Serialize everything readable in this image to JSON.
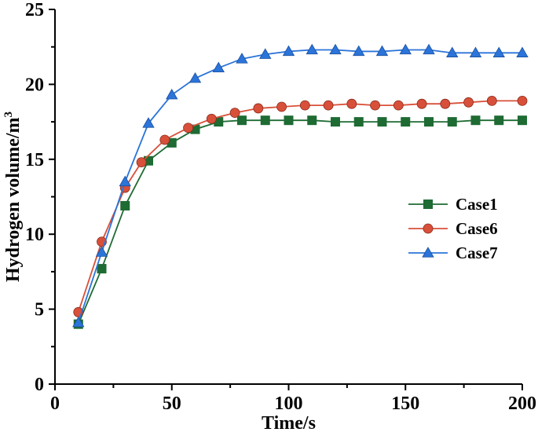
{
  "chart_data": {
    "type": "line",
    "xlabel": "Time/s",
    "ylabel": "Hydrogen volume/m",
    "ylabel_superscript": "3",
    "xlim": [
      0,
      200
    ],
    "ylim": [
      0,
      25
    ],
    "xticks": [
      0,
      50,
      100,
      150,
      200
    ],
    "yticks": [
      0,
      5,
      10,
      15,
      20,
      25
    ],
    "grid": false,
    "legend_position": "right",
    "series": [
      {
        "name": "Case1",
        "color": "#1e6b33",
        "marker": "square",
        "x": [
          10,
          20,
          30,
          40,
          50,
          60,
          70,
          80,
          90,
          100,
          110,
          120,
          130,
          140,
          150,
          160,
          170,
          180,
          190,
          200
        ],
        "y": [
          4.0,
          7.7,
          11.9,
          14.9,
          16.1,
          17.0,
          17.5,
          17.6,
          17.6,
          17.6,
          17.6,
          17.5,
          17.5,
          17.5,
          17.5,
          17.5,
          17.5,
          17.6,
          17.6,
          17.6
        ]
      },
      {
        "name": "Case6",
        "color": "#d8503a",
        "marker": "circle",
        "x": [
          10,
          20,
          30,
          37,
          47,
          57,
          67,
          77,
          87,
          97,
          107,
          117,
          127,
          137,
          147,
          157,
          167,
          177,
          187,
          200
        ],
        "y": [
          4.8,
          9.5,
          13.1,
          14.8,
          16.3,
          17.1,
          17.7,
          18.1,
          18.4,
          18.5,
          18.6,
          18.6,
          18.7,
          18.6,
          18.6,
          18.7,
          18.7,
          18.8,
          18.9,
          18.9
        ]
      },
      {
        "name": "Case7",
        "color": "#2b74d9",
        "marker": "triangle",
        "x": [
          10,
          20,
          30,
          40,
          50,
          60,
          70,
          80,
          90,
          100,
          110,
          120,
          130,
          140,
          150,
          160,
          170,
          180,
          190,
          200
        ],
        "y": [
          4.1,
          8.8,
          13.5,
          17.4,
          19.3,
          20.4,
          21.1,
          21.7,
          22.0,
          22.2,
          22.3,
          22.3,
          22.2,
          22.2,
          22.3,
          22.3,
          22.1,
          22.1,
          22.1,
          22.1
        ]
      }
    ]
  }
}
